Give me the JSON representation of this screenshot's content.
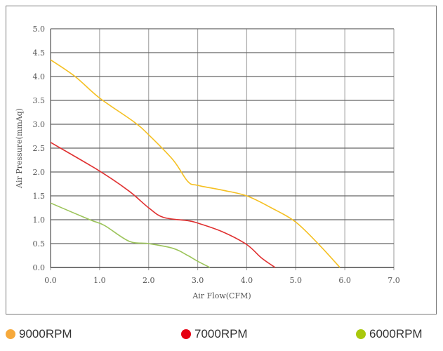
{
  "chart_data": {
    "type": "line",
    "title": "",
    "xlabel": "Air Flow(CFM)",
    "ylabel": "Air Pressure(mmAq)",
    "xlim": [
      0,
      7
    ],
    "ylim": [
      0,
      5
    ],
    "xticks": [
      "0.0",
      "1.0",
      "2.0",
      "3.0",
      "4.0",
      "5.0",
      "6.0",
      "7.0"
    ],
    "yticks": [
      "0.0",
      "0.5",
      "1.0",
      "1.5",
      "2.0",
      "2.5",
      "3.0",
      "3.5",
      "4.0",
      "4.5",
      "5.0"
    ],
    "grid": true,
    "legend_position": "bottom",
    "series": [
      {
        "name": "9000RPM",
        "color": "#f5c022",
        "legend_color": "#f6a93b",
        "x": [
          0,
          0.5,
          1,
          1.7,
          2,
          2.5,
          2.8,
          3,
          3.5,
          4,
          4.5,
          5,
          5.5,
          5.9
        ],
        "y": [
          4.35,
          4.0,
          3.55,
          3.05,
          2.78,
          2.25,
          1.8,
          1.72,
          1.62,
          1.5,
          1.25,
          0.95,
          0.45,
          0
        ]
      },
      {
        "name": "7000RPM",
        "color": "#e03030",
        "legend_color": "#e60012",
        "x": [
          0,
          1,
          1.6,
          2,
          2.3,
          2.8,
          3,
          3.5,
          4,
          4.3,
          4.58
        ],
        "y": [
          2.62,
          2.02,
          1.6,
          1.25,
          1.05,
          0.98,
          0.93,
          0.75,
          0.48,
          0.2,
          0
        ]
      },
      {
        "name": "6000RPM",
        "color": "#9cc45a",
        "legend_color": "#a9c80c",
        "x": [
          0,
          0.8,
          1.1,
          1.6,
          2,
          2.5,
          2.8,
          3,
          3.25
        ],
        "y": [
          1.35,
          1.0,
          0.88,
          0.55,
          0.5,
          0.4,
          0.25,
          0.13,
          0
        ]
      }
    ]
  }
}
